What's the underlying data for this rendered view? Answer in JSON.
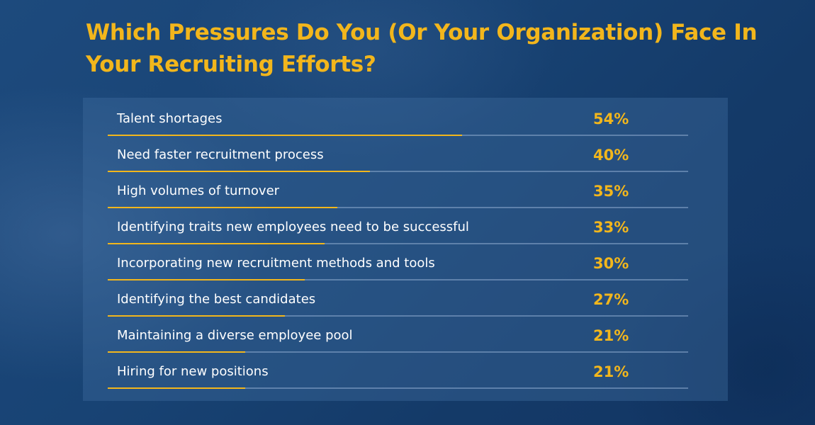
{
  "chart_data": {
    "type": "bar",
    "title": "Which Pressures Do You (Or Your Organization) Face In Your Recruiting Efforts?",
    "categories": [
      "Talent shortages",
      "Need faster recruitment process",
      "High volumes of turnover",
      "Identifying traits new employees need to be successful",
      "Incorporating new recruitment methods and tools",
      "Identifying the best candidates",
      "Maintaining a diverse employee pool",
      "Hiring for new positions"
    ],
    "values": [
      54,
      40,
      35,
      33,
      30,
      27,
      21,
      21
    ],
    "value_labels": [
      "54%",
      "40%",
      "35%",
      "33%",
      "30%",
      "27%",
      "21%",
      "21%"
    ],
    "unit": "%",
    "xlabel": "",
    "ylabel": "",
    "ylim": [
      0,
      100
    ]
  },
  "colors": {
    "accent": "#f2b61c",
    "background": "#173f6e",
    "text": "#ffffff"
  }
}
